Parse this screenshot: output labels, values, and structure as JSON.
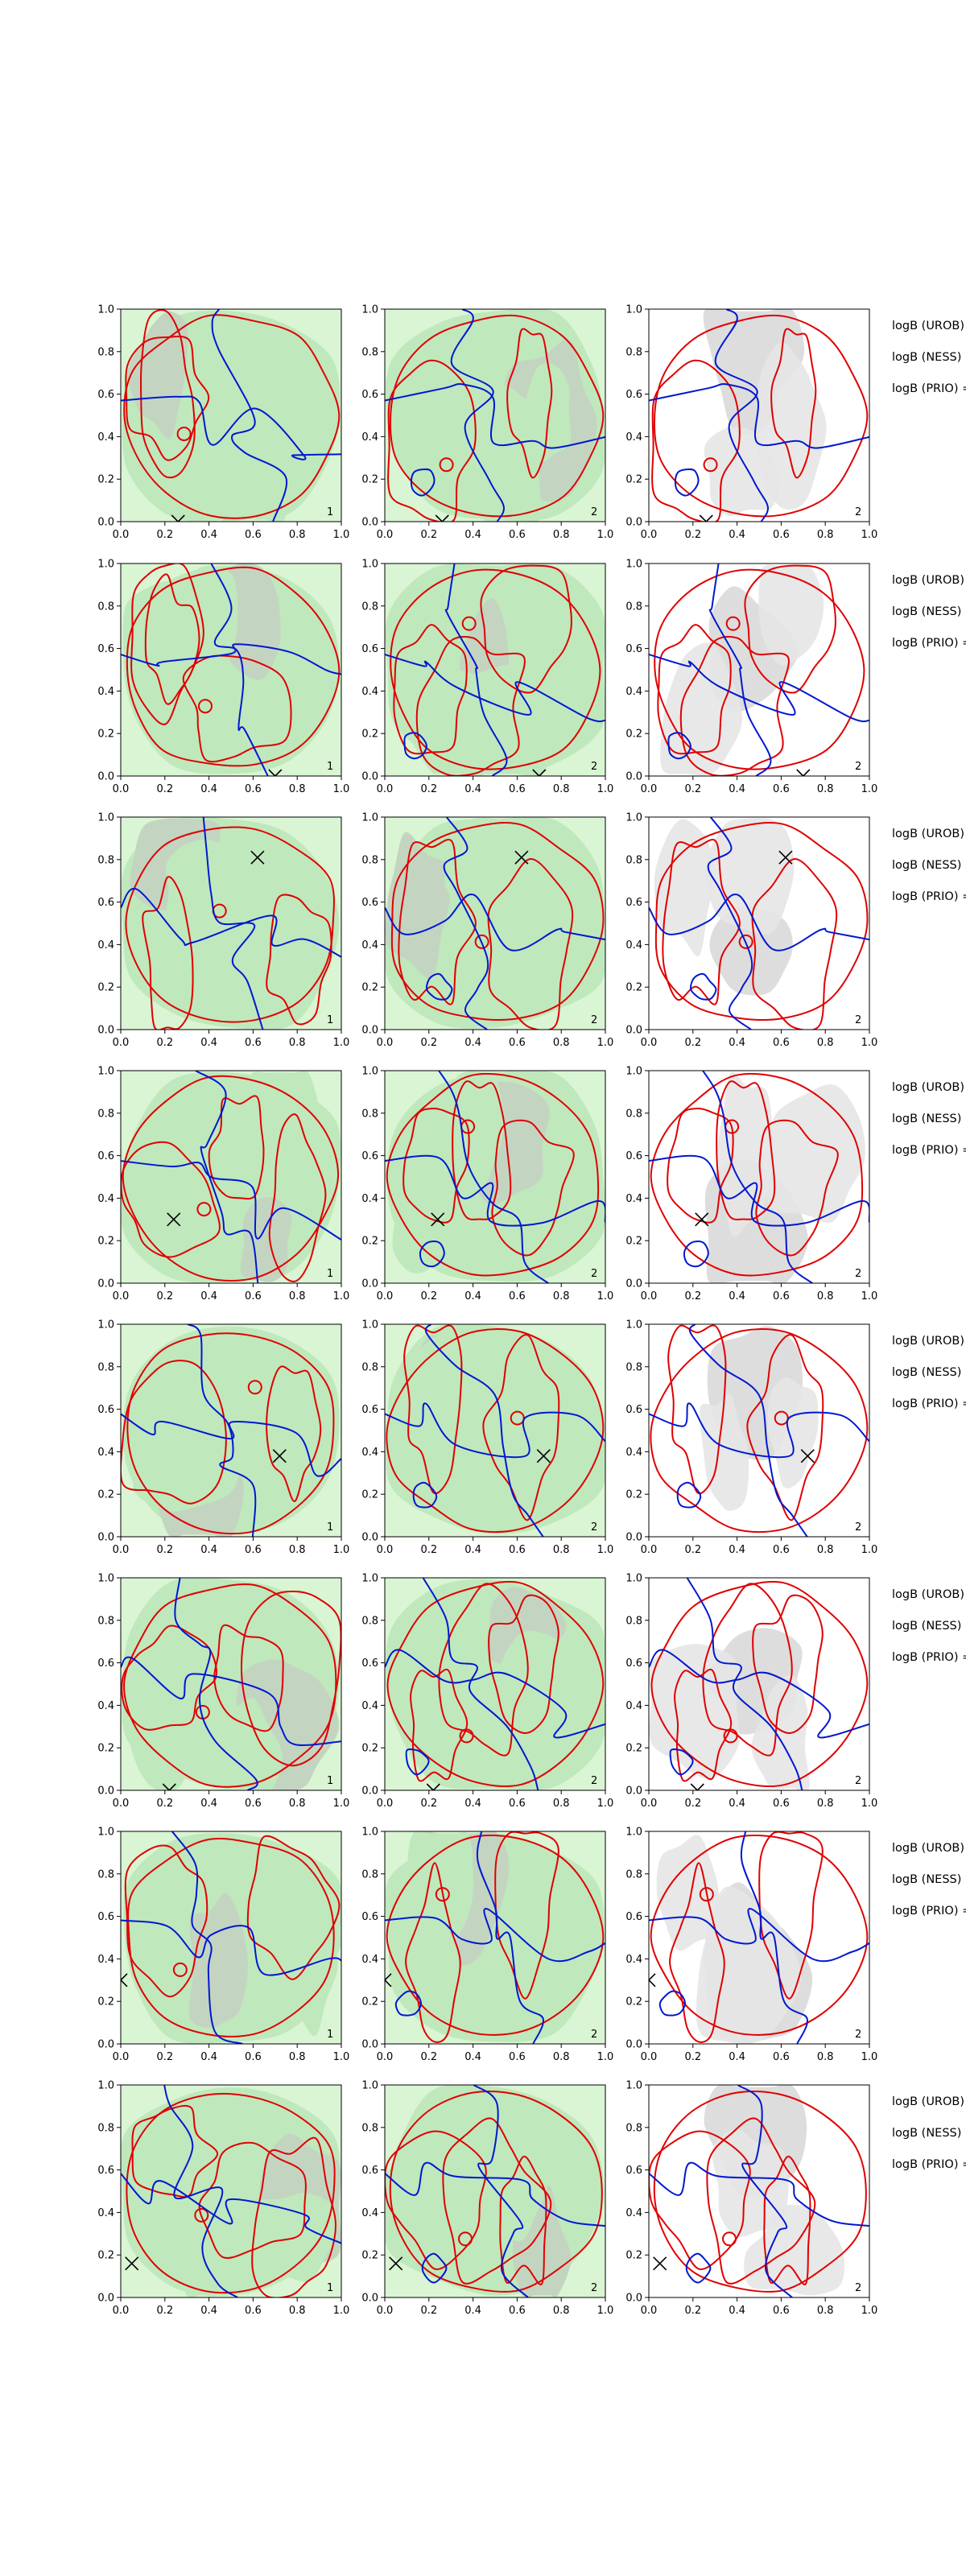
{
  "figure": {
    "background": "#ffffff",
    "colors": {
      "green_light": "#d9f5d3",
      "green_mid": "#bfe8bd",
      "green_dark_gray": "#c3d5c1",
      "gray_fill": "#e6e6e6",
      "red_contour": "#e00000",
      "blue_contour": "#0018d0",
      "marker": "#000000"
    }
  },
  "chart_data": [
    {
      "type": "heatmap",
      "title": "",
      "xlabel": "",
      "ylabel": "",
      "xlim": [
        0,
        1
      ],
      "ylim": [
        0,
        1
      ],
      "grid": false,
      "legend": "none",
      "description_of_panels": "8 rows x 3 columns of contour/filled-contour maps; column 1 and 2 green filled backgrounds, column 3 white background with gray filled regions; red and blue contour lines; black x marker per row",
      "x_ticks": [
        "0.0",
        "0.2",
        "0.4",
        "0.6",
        "0.8",
        "1.0"
      ],
      "y_ticks": [
        "0.0",
        "0.2",
        "0.4",
        "0.6",
        "0.8",
        "1.0"
      ],
      "panel_labels": [
        "1",
        "2",
        "2"
      ],
      "side_labels": [
        "logB (UROB) =",
        "logB (NESS) =",
        "logB (PRIO) ="
      ],
      "rows": [
        {
          "marker": [
            0.26,
            0.0
          ]
        },
        {
          "marker": [
            0.7,
            0.0
          ]
        },
        {
          "marker": [
            0.62,
            0.81
          ]
        },
        {
          "marker": [
            0.24,
            0.3
          ]
        },
        {
          "marker": [
            0.72,
            0.38
          ]
        },
        {
          "marker": [
            0.22,
            0.0
          ]
        },
        {
          "marker": [
            0.0,
            0.3
          ]
        },
        {
          "marker": [
            0.05,
            0.16
          ]
        }
      ]
    }
  ]
}
